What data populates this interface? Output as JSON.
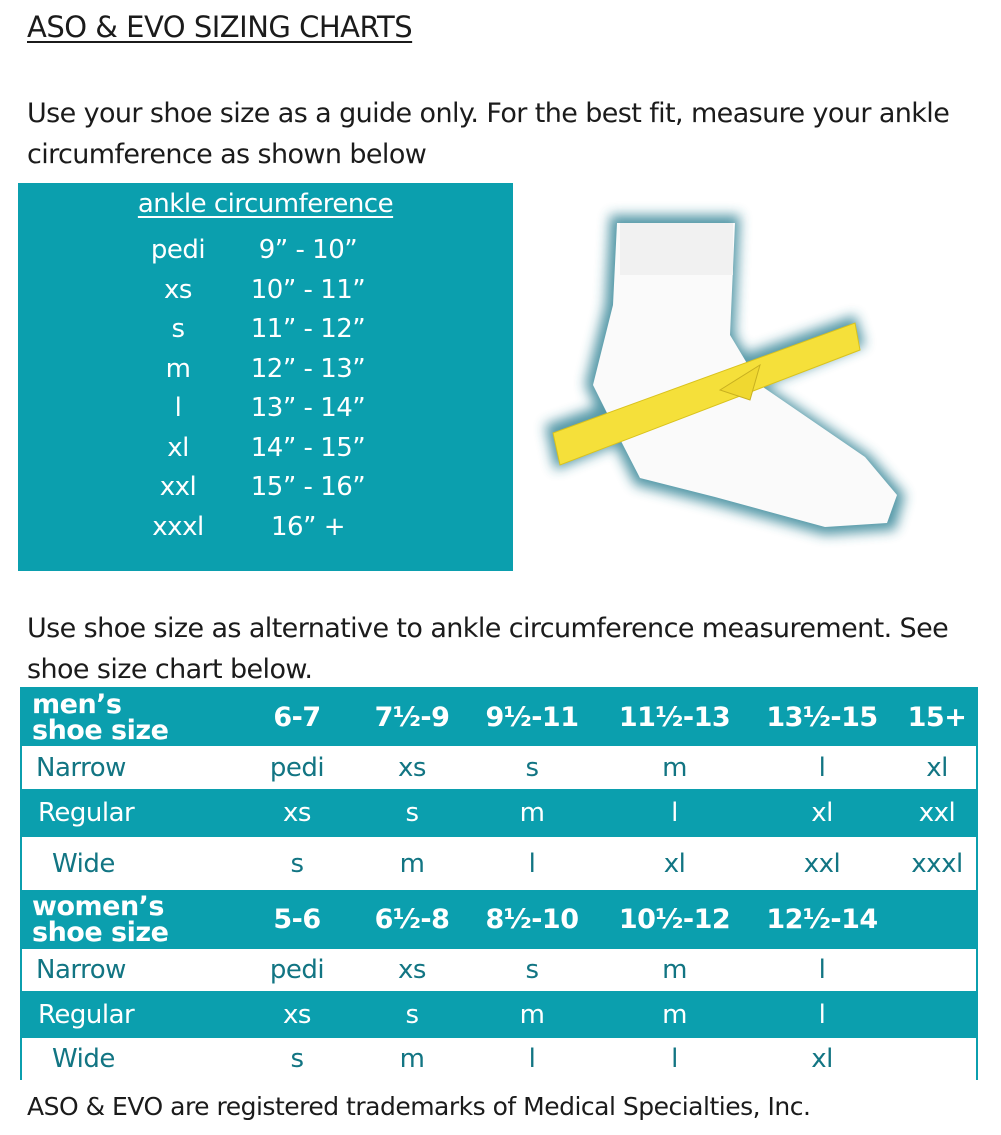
{
  "title": "ASO & EVO SIZING CHARTS",
  "intro": "Use your shoe size as a guide only. For the best fit, measure your ankle circumference as shown below",
  "ankle": {
    "heading": "ankle circumference",
    "rows": [
      {
        "size": "pedi",
        "range": "9” - 10”"
      },
      {
        "size": "xs",
        "range": "10” - 11”"
      },
      {
        "size": "s",
        "range": "11” - 12”"
      },
      {
        "size": "m",
        "range": "12” - 13”"
      },
      {
        "size": "l",
        "range": "13” - 14”"
      },
      {
        "size": "xl",
        "range": "14” - 15”"
      },
      {
        "size": "xxl",
        "range": "15” - 16”"
      },
      {
        "size": "xxxl",
        "range": "16” +"
      }
    ]
  },
  "image": {
    "description_icon": "foot-with-measuring-tape"
  },
  "alt_text": "Use shoe size as alternative to ankle circumference measurement. See shoe size chart below.",
  "men": {
    "label_1": "men’s",
    "label_2": "shoe size",
    "sizes": [
      "6-7",
      "7½-9",
      "9½-11",
      "11½-13",
      "13½-15",
      "15+"
    ],
    "rows": [
      {
        "width": "Narrow",
        "values": [
          "pedi",
          "xs",
          "s",
          "m",
          "l",
          "xl"
        ]
      },
      {
        "width": "Regular",
        "values": [
          "xs",
          "s",
          "m",
          "l",
          "xl",
          "xxl"
        ]
      },
      {
        "width": "Wide",
        "values": [
          "s",
          "m",
          "l",
          "xl",
          "xxl",
          "xxxl"
        ]
      }
    ]
  },
  "women": {
    "label_1": "women’s",
    "label_2": "shoe size",
    "sizes": [
      "5-6",
      "6½-8",
      "8½-10",
      "10½-12",
      "12½-14"
    ],
    "rows": [
      {
        "width": "Narrow",
        "values": [
          "pedi",
          "xs",
          "s",
          "m",
          "l"
        ]
      },
      {
        "width": "Regular",
        "values": [
          "xs",
          "s",
          "m",
          "m",
          "l"
        ]
      },
      {
        "width": "Wide",
        "values": [
          "s",
          "m",
          "l",
          "l",
          "xl"
        ]
      }
    ]
  },
  "footer": "ASO & EVO are registered trademarks of Medical Specialties, Inc.",
  "colors": {
    "teal": "#0b9fae",
    "text_teal": "#127583",
    "tape": "#f5e03a"
  }
}
